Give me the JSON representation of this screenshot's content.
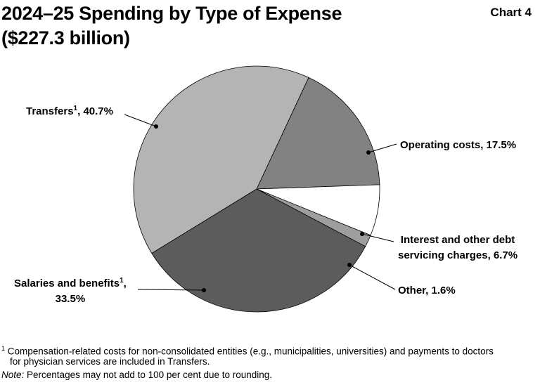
{
  "header": {
    "title_line1": "2024–25 Spending by Type of Expense",
    "title_line2": "($227.3 billion)",
    "chart_number": "Chart 4"
  },
  "labels": {
    "transfers": {
      "name": "Transfers",
      "sup": "1",
      "value": ", 40.7%"
    },
    "operating": {
      "text": "Operating costs, 17.5%"
    },
    "interest": {
      "line1": "Interest and other debt",
      "line2": "servicing charges, 6.7%"
    },
    "other": {
      "text": "Other, 1.6%"
    },
    "salaries": {
      "name": "Salaries and benefits",
      "sup": "1",
      "value": ",",
      "line2": "33.5%"
    }
  },
  "footnotes": {
    "footnote_marker": "1",
    "footnote_line1": "Compensation-related costs for non-consolidated entities (e.g., municipalities, universities) and payments to doctors",
    "footnote_line2": "for physician services are included in Transfers.",
    "note_label": "Note:",
    "note_text": " Percentages may not add to 100 per cent due to rounding."
  },
  "chart_data": {
    "type": "pie",
    "title": "2024–25 Spending by Type of Expense",
    "subtitle": "($227.3 billion)",
    "total": "$227.3 billion",
    "start_angle_deg": 65,
    "direction": "clockwise",
    "slices": [
      {
        "name": "Operating costs",
        "value": 17.5,
        "color": "#828282"
      },
      {
        "name": "Interest and other debt servicing charges",
        "value": 6.7,
        "color": "#ffffff"
      },
      {
        "name": "Other",
        "value": 1.6,
        "color": "#9e9e9e"
      },
      {
        "name": "Salaries and benefits",
        "value": 33.5,
        "color": "#5c5c5c"
      },
      {
        "name": "Transfers",
        "value": 40.7,
        "color": "#b4b4b4"
      }
    ]
  }
}
